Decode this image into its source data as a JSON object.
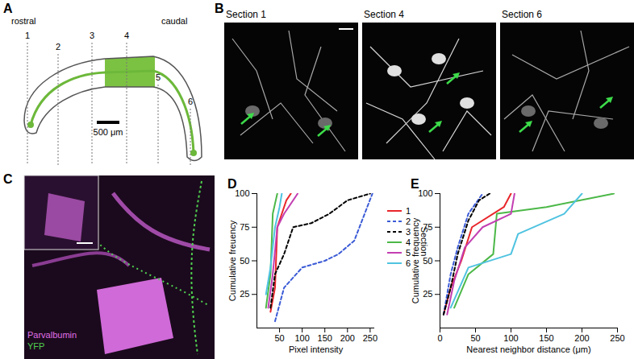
{
  "panels": {
    "A": {
      "label": "A",
      "directions": [
        "rostral",
        "caudal"
      ],
      "sections": [
        "1",
        "2",
        "3",
        "4",
        "5",
        "6"
      ],
      "scale_bar": "500 μm"
    },
    "B": {
      "label": "B",
      "images": [
        "Section 1",
        "Section 4",
        "Section 6"
      ]
    },
    "C": {
      "label": "C",
      "channels": [
        "Parvalbumin",
        "YFP"
      ]
    },
    "legend_title": "Section"
  },
  "chart_data": [
    {
      "type": "line",
      "title": "D",
      "xlabel": "Pixel intensity",
      "ylabel": "Cumulative freuency",
      "xlim": [
        0,
        260
      ],
      "xticks": [
        50,
        100,
        150,
        200,
        250
      ],
      "ylim": [
        0,
        100
      ],
      "yticks": [
        25,
        50,
        75,
        100
      ],
      "legend": "right",
      "series": [
        {
          "name": "1",
          "color": "#e8262b",
          "line_style": "solid",
          "x": [
            30,
            40,
            45,
            55,
            65,
            75
          ],
          "values": [
            12,
            30,
            75,
            85,
            95,
            100
          ]
        },
        {
          "name": "2",
          "color": "#3b5bd6",
          "line_style": "dashed",
          "x": [
            40,
            60,
            100,
            150,
            180,
            215,
            255
          ],
          "values": [
            5,
            30,
            45,
            50,
            55,
            65,
            100
          ]
        },
        {
          "name": "3",
          "color": "#000000",
          "line_style": "dashed",
          "x": [
            30,
            40,
            60,
            80,
            120,
            160,
            200,
            250
          ],
          "values": [
            15,
            40,
            55,
            75,
            78,
            85,
            95,
            100
          ]
        },
        {
          "name": "4",
          "color": "#4cb848",
          "line_style": "solid",
          "x": [
            20,
            30,
            35,
            45
          ],
          "values": [
            15,
            40,
            85,
            100
          ]
        },
        {
          "name": "5",
          "color": "#c33fb2",
          "line_style": "solid",
          "x": [
            25,
            35,
            45,
            60,
            90
          ],
          "values": [
            15,
            40,
            75,
            85,
            100
          ]
        },
        {
          "name": "6",
          "color": "#4fc3e0",
          "line_style": "solid",
          "x": [
            20,
            30,
            40,
            50,
            55
          ],
          "values": [
            25,
            45,
            75,
            90,
            100
          ]
        }
      ]
    },
    {
      "type": "line",
      "title": "E",
      "xlabel": "Nearest neighbor distance (μm)",
      "ylabel": "Cumulative frequency",
      "xlim": [
        0,
        250
      ],
      "xticks": [
        0,
        50,
        100,
        150,
        200,
        250
      ],
      "ylim": [
        0,
        100
      ],
      "yticks": [
        25,
        50,
        75,
        100
      ],
      "series": [
        {
          "name": "1",
          "color": "#e8262b",
          "line_style": "solid",
          "x": [
            5,
            15,
            30,
            45,
            90,
            100
          ],
          "values": [
            10,
            30,
            50,
            75,
            90,
            100
          ]
        },
        {
          "name": "2",
          "color": "#3b5bd6",
          "line_style": "dashed",
          "x": [
            5,
            15,
            25,
            40,
            60
          ],
          "values": [
            10,
            40,
            60,
            85,
            100
          ]
        },
        {
          "name": "3",
          "color": "#000000",
          "line_style": "dashed",
          "x": [
            5,
            15,
            25,
            40,
            55,
            70
          ],
          "values": [
            10,
            30,
            55,
            80,
            95,
            100
          ]
        },
        {
          "name": "4",
          "color": "#4cb848",
          "line_style": "solid",
          "x": [
            20,
            40,
            75,
            80,
            150,
            245
          ],
          "values": [
            15,
            40,
            55,
            85,
            90,
            100
          ]
        },
        {
          "name": "5",
          "color": "#c33fb2",
          "line_style": "solid",
          "x": [
            10,
            20,
            35,
            60,
            100,
            105
          ],
          "values": [
            10,
            35,
            60,
            75,
            85,
            100
          ]
        },
        {
          "name": "6",
          "color": "#4fc3e0",
          "line_style": "solid",
          "x": [
            15,
            40,
            100,
            110,
            175,
            200
          ],
          "values": [
            15,
            45,
            55,
            70,
            85,
            100
          ]
        }
      ]
    }
  ]
}
